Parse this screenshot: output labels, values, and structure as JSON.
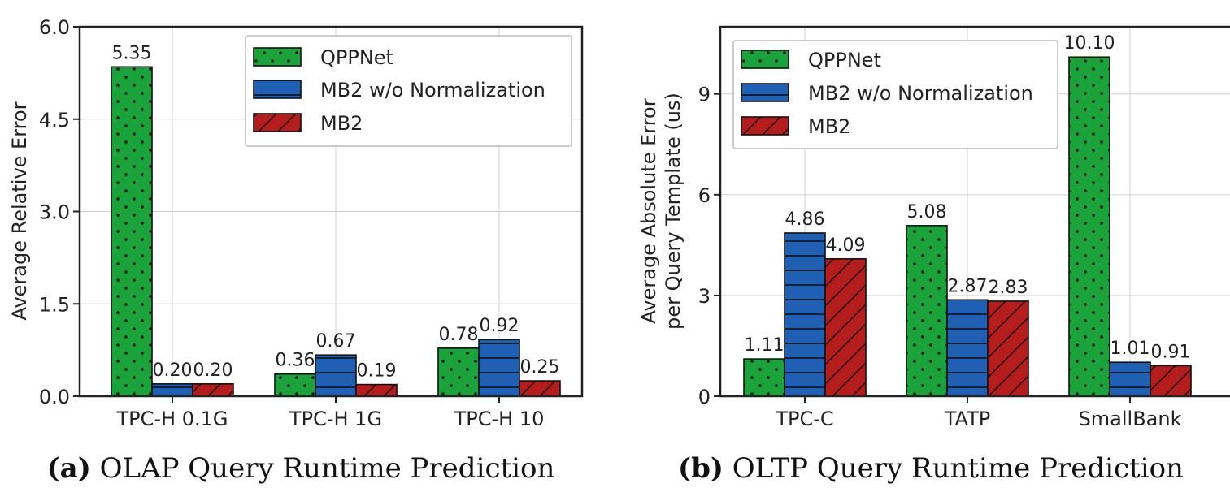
{
  "chart_data": [
    {
      "type": "bar",
      "caption_label": "(a)",
      "caption_text": "OLAP Query Runtime Prediction",
      "xlabel": "",
      "ylabel": "Average Relative Error",
      "categories": [
        "TPC-H 0.1G",
        "TPC-H 1G",
        "TPC-H 10"
      ],
      "ylim": [
        0,
        6.0
      ],
      "yticks": [
        "0.0",
        "1.5",
        "3.0",
        "4.5",
        "6.0"
      ],
      "ytick_values": [
        0,
        1.5,
        3.0,
        4.5,
        6.0
      ],
      "grid": true,
      "legend_position": "top-right",
      "series": [
        {
          "name": "QPPNet",
          "values": [
            5.35,
            0.36,
            0.78
          ],
          "labels": [
            "5.35",
            "0.36",
            "0.78"
          ],
          "color": "#1aa33a",
          "pattern": "dots"
        },
        {
          "name": "MB2 w/o Normalization",
          "values": [
            0.2,
            0.67,
            0.92
          ],
          "labels": [
            "0.20",
            "0.67",
            "0.92"
          ],
          "color": "#1f5fb4",
          "pattern": "hlines"
        },
        {
          "name": "MB2",
          "values": [
            0.2,
            0.19,
            0.25
          ],
          "labels": [
            "0.20",
            "0.19",
            "0.25"
          ],
          "color": "#b51c1c",
          "pattern": "diag"
        }
      ]
    },
    {
      "type": "bar",
      "caption_label": "(b)",
      "caption_text": "OLTP Query Runtime Prediction",
      "xlabel": "",
      "ylabel": "Average Absolute Error",
      "ylabel2": "per Query Template (us)",
      "categories": [
        "TPC-C",
        "TATP",
        "SmallBank"
      ],
      "ylim": [
        0,
        11.0
      ],
      "yticks": [
        "0",
        "3",
        "6",
        "9"
      ],
      "ytick_values": [
        0,
        3,
        6,
        9
      ],
      "grid": true,
      "legend_position": "top-left",
      "series": [
        {
          "name": "QPPNet",
          "values": [
            1.11,
            5.08,
            10.1
          ],
          "labels": [
            "1.11",
            "5.08",
            "10.10"
          ],
          "color": "#1aa33a",
          "pattern": "dots"
        },
        {
          "name": "MB2 w/o Normalization",
          "values": [
            4.86,
            2.87,
            1.01
          ],
          "labels": [
            "4.86",
            "2.87",
            "1.01"
          ],
          "color": "#1f5fb4",
          "pattern": "hlines"
        },
        {
          "name": "MB2",
          "values": [
            4.09,
            2.83,
            0.91
          ],
          "labels": [
            "4.09",
            "2.83",
            "0.91"
          ],
          "color": "#b51c1c",
          "pattern": "diag"
        }
      ]
    }
  ]
}
